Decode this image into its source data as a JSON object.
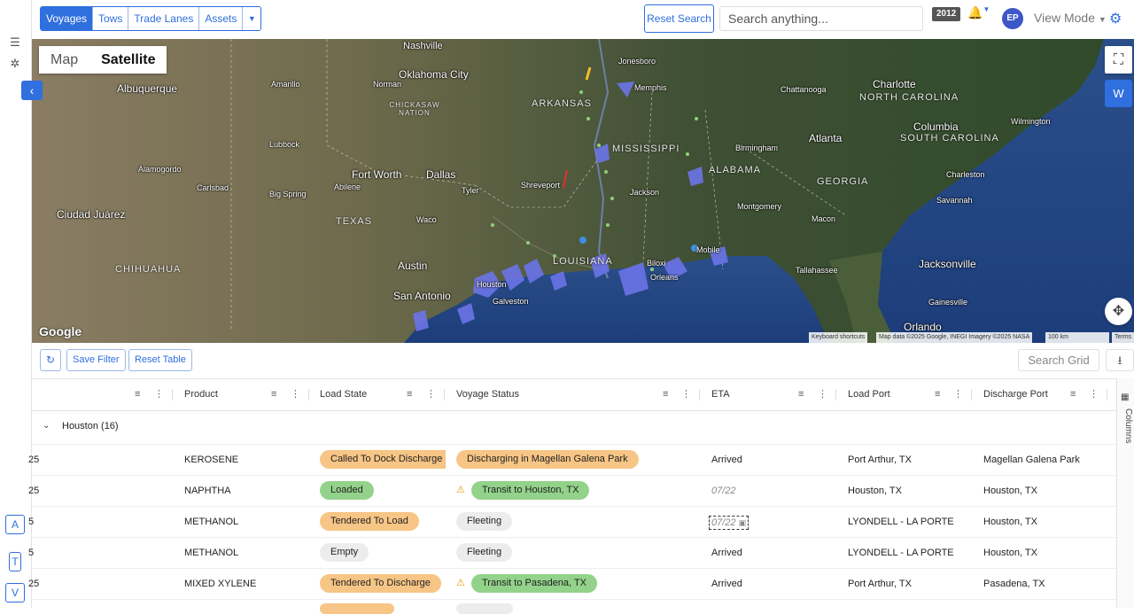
{
  "nav_tabs": [
    {
      "label": "Voyages",
      "active": true
    },
    {
      "label": "Tows",
      "active": false
    },
    {
      "label": "Trade Lanes",
      "active": false
    },
    {
      "label": "Assets",
      "active": false
    }
  ],
  "header": {
    "reset_search": "Reset Search",
    "search_placeholder": "Search anything...",
    "year_badge": "2012",
    "avatar_initials": "EP",
    "view_mode": "View Mode"
  },
  "map": {
    "toggle": {
      "map": "Map",
      "satellite": "Satellite",
      "selected": "Satellite"
    },
    "side_button": "W",
    "google_logo": "Google",
    "attribution": {
      "shortcuts": "Keyboard shortcuts",
      "data": "Map data ©2025 Google, INEGI Imagery ©2025 NASA",
      "scale": "100 km",
      "terms": "Terms"
    },
    "cities": {
      "nashville": "Nashville",
      "oklahoma_city": "Oklahoma City",
      "albuquerque": "Albuquerque",
      "amarillo": "Amarillo",
      "norman": "Norman",
      "chickasaw": "CHICKASAW NATION",
      "jonesboro": "Jonesboro",
      "memphis": "Memphis",
      "arkansas": "ARKANSAS",
      "chattanooga": "Chattanooga",
      "charlotte": "Charlotte",
      "north_carolina": "NORTH CAROLINA",
      "lubbock": "Lubbock",
      "mississippi": "MISSISSIPPI",
      "atlanta": "Atlanta",
      "columbia": "Columbia",
      "south_carolina": "SOUTH CAROLINA",
      "wilmington": "Wilmington",
      "birmingham": "Birmingham",
      "alabama": "ALABAMA",
      "fort_worth": "Fort Worth",
      "dallas": "Dallas",
      "shreveport": "Shreveport",
      "jackson": "Jackson",
      "georgia": "GEORGIA",
      "charleston": "Charleston",
      "alamogordo": "Alamogordo",
      "carlsbad": "Carlsbad",
      "big_spring": "Big Spring",
      "abilene": "Abilene",
      "tyler": "Tyler",
      "montgomery": "Montgomery",
      "macon": "Macon",
      "ciudad_juarez": "Ciudad Juárez",
      "texas": "TEXAS",
      "waco": "Waco",
      "savannah": "Savannah",
      "louisiana": "LOUISIANA",
      "austin": "Austin",
      "mobile": "Mobile",
      "biloxi": "Biloxi",
      "new_orleans": "Orleans",
      "jacksonville": "Jacksonville",
      "tallahassee": "Tallahassee",
      "chihuahua": "CHIHUAHUA",
      "san_antonio": "San Antonio",
      "houston": "Houston",
      "galveston": "Galveston",
      "gainesville": "Gainesville",
      "orlando": "Orlando"
    }
  },
  "grid_toolbar": {
    "save_filter": "Save Filter",
    "reset_table": "Reset Table",
    "search_grid": "Search Grid"
  },
  "columns": [
    "Product",
    "Load State",
    "Voyage Status",
    "ETA",
    "Load Port",
    "Discharge Port"
  ],
  "column_panel_label": "Columns",
  "group": {
    "label": "Houston (16)"
  },
  "rows": [
    {
      "first": "25",
      "product": "KEROSENE",
      "load_state": "Called To Dock Discharge",
      "load_state_color": "orange",
      "voyage_status": "Discharging in Magellan Galena Park",
      "voyage_color": "orange",
      "warning": false,
      "eta": "Arrived",
      "eta_style": "normal",
      "load_port": "Port Arthur, TX",
      "discharge_port": "Magellan Galena Park"
    },
    {
      "first": "25",
      "product": "NAPHTHA",
      "load_state": "Loaded",
      "load_state_color": "green",
      "voyage_status": "Transit to Houston, TX",
      "voyage_color": "green",
      "warning": true,
      "eta": "07/22",
      "eta_style": "dim",
      "load_port": "Houston, TX",
      "discharge_port": "Houston, TX"
    },
    {
      "first": "5",
      "product": "METHANOL",
      "load_state": "Tendered To Load",
      "load_state_color": "orange",
      "voyage_status": "Fleeting",
      "voyage_color": "gray",
      "warning": false,
      "eta": "07/22",
      "eta_style": "boxed",
      "load_port": "LYONDELL - LA PORTE",
      "discharge_port": "Houston, TX"
    },
    {
      "first": "5",
      "product": "METHANOL",
      "load_state": "Empty",
      "load_state_color": "gray",
      "voyage_status": "Fleeting",
      "voyage_color": "gray",
      "warning": false,
      "eta": "Arrived",
      "eta_style": "normal",
      "load_port": "LYONDELL - LA PORTE",
      "discharge_port": "Houston, TX"
    },
    {
      "first": "25",
      "product": "MIXED XYLENE",
      "load_state": "Tendered To Discharge",
      "load_state_color": "orange",
      "voyage_status": "Transit to Pasadena, TX",
      "voyage_color": "green",
      "warning": true,
      "eta": "Arrived",
      "eta_style": "normal",
      "load_port": "Port Arthur, TX",
      "discharge_port": "Pasadena, TX"
    }
  ],
  "left_rail_letters": [
    "A",
    "T",
    "V"
  ],
  "colors": {
    "accent": "#2f6fde",
    "orange_pill": "#f7c585",
    "green_pill": "#93d28a",
    "gray_pill": "#ececec",
    "marker": "#6b74e8"
  }
}
